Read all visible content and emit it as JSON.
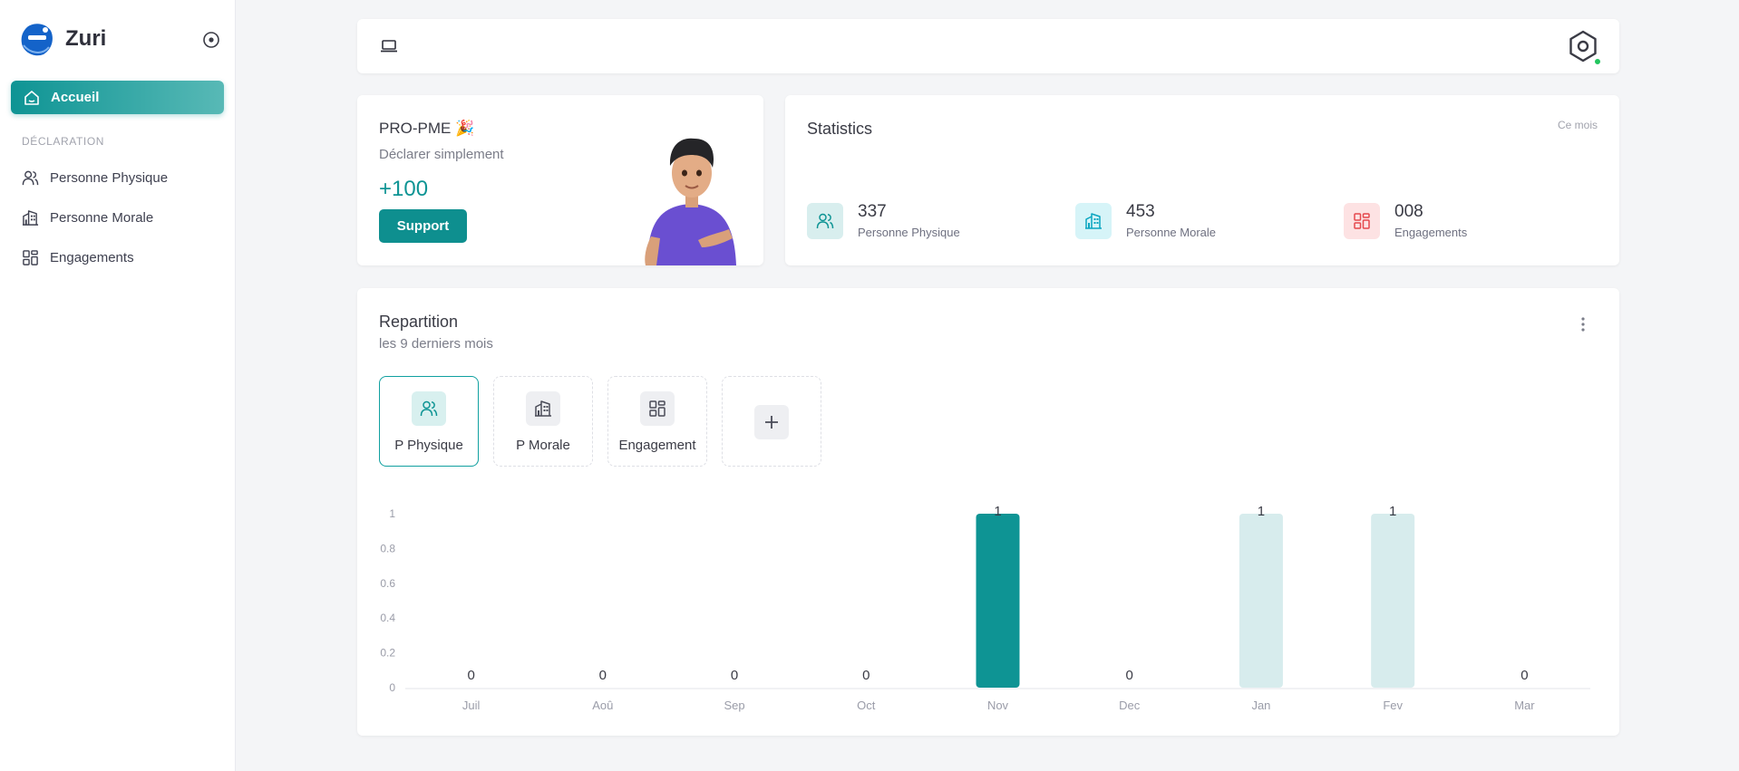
{
  "brand": {
    "name": "Zuri"
  },
  "sidebar": {
    "active_item": "Accueil",
    "section": "DÉCLARATION",
    "items": [
      {
        "label": "Personne Physique",
        "icon": "users-icon"
      },
      {
        "label": "Personne Morale",
        "icon": "building-icon"
      },
      {
        "label": "Engagements",
        "icon": "grid-icon"
      }
    ]
  },
  "promo": {
    "title": "PRO-PME 🎉",
    "subtitle": "Déclarer simplement",
    "value": "+100",
    "button": "Support"
  },
  "stats": {
    "title": "Statistics",
    "period": "Ce mois",
    "items": [
      {
        "value": "337",
        "label": "Personne Physique",
        "icon": "users-icon",
        "color": "#0e9494",
        "bg": "#d8eeee"
      },
      {
        "value": "453",
        "label": "Personne Morale",
        "icon": "building-icon",
        "color": "#0aa5c0",
        "bg": "#d6f4f8"
      },
      {
        "value": "008",
        "label": "Engagements",
        "icon": "grid-icon",
        "color": "#e5484d",
        "bg": "#fde2e3"
      }
    ]
  },
  "repartition": {
    "title": "Repartition",
    "subtitle": "les 9 derniers mois",
    "tabs": [
      {
        "label": "P Physique",
        "icon": "users-icon"
      },
      {
        "label": "P Morale",
        "icon": "building-icon"
      },
      {
        "label": "Engagement",
        "icon": "grid-icon"
      }
    ],
    "add_icon": "plus-icon"
  },
  "colors": {
    "accent": "#0e9494",
    "bar_light": "#d7eced"
  },
  "chart_data": {
    "type": "bar",
    "categories": [
      "Juil",
      "Aoû",
      "Sep",
      "Oct",
      "Nov",
      "Dec",
      "Jan",
      "Fev",
      "Mar"
    ],
    "values": [
      0,
      0,
      0,
      0,
      1,
      0,
      1,
      1,
      0
    ],
    "highlight_index": 4,
    "yticks": [
      "0",
      "0.2",
      "0.4",
      "0.6",
      "0.8",
      "1"
    ],
    "ylim": [
      0,
      1
    ],
    "title": "",
    "xlabel": "",
    "ylabel": "",
    "grid": false
  }
}
